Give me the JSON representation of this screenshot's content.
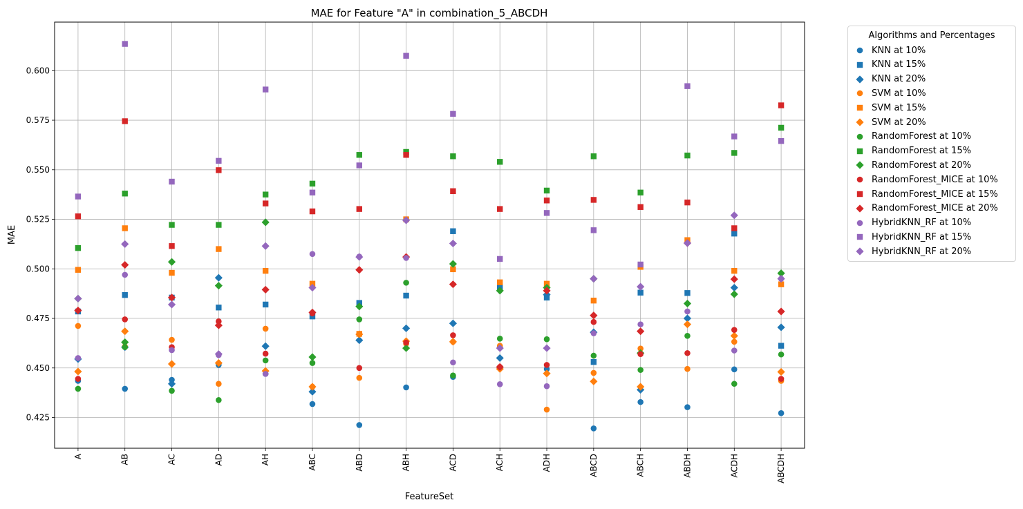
{
  "chart_data": {
    "type": "scatter",
    "title": "MAE for Feature \"A\" in combination_5_ABCDH",
    "xlabel": "FeatureSet",
    "ylabel": "MAE",
    "categories": [
      "A",
      "AB",
      "AC",
      "AD",
      "AH",
      "ABC",
      "ABD",
      "ABH",
      "ACD",
      "ACH",
      "ADH",
      "ABCD",
      "ABCH",
      "ABDH",
      "ACDH",
      "ABCDH"
    ],
    "ylim": [
      0.4095,
      0.6245
    ],
    "yticks": [
      0.425,
      0.45,
      0.475,
      0.5,
      0.525,
      0.55,
      0.575,
      0.6
    ],
    "ytick_labels": [
      "0.425",
      "0.450",
      "0.475",
      "0.500",
      "0.525",
      "0.550",
      "0.575",
      "0.600"
    ],
    "grid": true,
    "legend": {
      "title": "Algorithms and Percentages",
      "placement": "outside-top-right"
    },
    "series": [
      {
        "name": "KNN at 10%",
        "color": "#1f77b4",
        "marker": "circle",
        "values": [
          0.4435,
          0.4395,
          0.444,
          0.4515,
          0.447,
          0.4318,
          0.4212,
          0.4402,
          0.4455,
          0.4605,
          0.4495,
          0.4195,
          0.4328,
          0.4302,
          0.4493,
          0.4272
        ]
      },
      {
        "name": "KNN at 15%",
        "color": "#1f77b4",
        "marker": "square",
        "values": [
          0.4785,
          0.4868,
          0.4855,
          0.4805,
          0.482,
          0.476,
          0.4828,
          0.4865,
          0.519,
          0.491,
          0.4855,
          0.453,
          0.488,
          0.4878,
          0.5178,
          0.4612
        ]
      },
      {
        "name": "KNN at 20%",
        "color": "#1f77b4",
        "marker": "diamond",
        "values": [
          0.4545,
          0.4605,
          0.442,
          0.4955,
          0.461,
          0.438,
          0.464,
          0.47,
          0.4725,
          0.455,
          0.487,
          0.468,
          0.439,
          0.475,
          0.4905,
          0.4705
        ]
      },
      {
        "name": "SVM at 10%",
        "color": "#ff7f0e",
        "marker": "circle",
        "values": [
          0.4712,
          0.4608,
          0.4642,
          0.442,
          0.4698,
          0.4405,
          0.445,
          0.4622,
          0.4632,
          0.4612,
          0.429,
          0.4475,
          0.4598,
          0.4495,
          0.4632,
          0.4435
        ]
      },
      {
        "name": "SVM at 15%",
        "color": "#ff7f0e",
        "marker": "square",
        "values": [
          0.4995,
          0.5205,
          0.498,
          0.51,
          0.499,
          0.4925,
          0.4672,
          0.525,
          0.4998,
          0.4932,
          0.4925,
          0.484,
          0.501,
          0.5145,
          0.499,
          0.4922
        ]
      },
      {
        "name": "SVM at 20%",
        "color": "#ff7f0e",
        "marker": "diamond",
        "values": [
          0.4482,
          0.4685,
          0.452,
          0.4525,
          0.4485,
          0.4405,
          0.467,
          0.4635,
          0.4632,
          0.4495,
          0.4472,
          0.4432,
          0.4405,
          0.472,
          0.4662,
          0.448
        ]
      },
      {
        "name": "RandomForest at 10%",
        "color": "#2ca02c",
        "marker": "circle",
        "values": [
          0.4395,
          0.4605,
          0.4385,
          0.4338,
          0.4538,
          0.4525,
          0.4745,
          0.493,
          0.4462,
          0.4648,
          0.4645,
          0.4562,
          0.449,
          0.4662,
          0.442,
          0.4568
        ]
      },
      {
        "name": "RandomForest at 15%",
        "color": "#2ca02c",
        "marker": "square",
        "values": [
          0.5105,
          0.538,
          0.5222,
          0.5222,
          0.5375,
          0.543,
          0.5575,
          0.559,
          0.5568,
          0.554,
          0.5395,
          0.5568,
          0.5385,
          0.5572,
          0.5585,
          0.5712
        ]
      },
      {
        "name": "RandomForest at 20%",
        "color": "#2ca02c",
        "marker": "diamond",
        "values": [
          0.485,
          0.463,
          0.5035,
          0.4915,
          0.5235,
          0.4555,
          0.481,
          0.46,
          0.5025,
          0.489,
          0.4905,
          0.495,
          0.4575,
          0.4825,
          0.4872,
          0.4978
        ]
      },
      {
        "name": "RandomForest_MICE at 10%",
        "color": "#d62728",
        "marker": "circle",
        "values": [
          0.4445,
          0.4745,
          0.4605,
          0.4735,
          0.4572,
          0.4775,
          0.45,
          0.4628,
          0.4665,
          0.4505,
          0.4515,
          0.4732,
          0.457,
          0.4575,
          0.4692,
          0.4445
        ]
      },
      {
        "name": "RandomForest_MICE at 15%",
        "color": "#d62728",
        "marker": "square",
        "values": [
          0.5265,
          0.5745,
          0.5115,
          0.5498,
          0.533,
          0.529,
          0.5302,
          0.5575,
          0.5392,
          0.5302,
          0.5345,
          0.5348,
          0.5312,
          0.5335,
          0.5205,
          0.5825
        ]
      },
      {
        "name": "RandomForest_MICE at 20%",
        "color": "#d62728",
        "marker": "diamond",
        "values": [
          0.479,
          0.502,
          0.4855,
          0.4715,
          0.4895,
          0.478,
          0.4995,
          0.506,
          0.4922,
          0.4505,
          0.489,
          0.4765,
          0.4685,
          0.513,
          0.4948,
          0.4785
        ]
      },
      {
        "name": "HybridKNN_RF at 10%",
        "color": "#9467bd",
        "marker": "circle",
        "values": [
          0.455,
          0.497,
          0.459,
          0.4565,
          0.447,
          0.5075,
          0.5062,
          0.5055,
          0.4528,
          0.4418,
          0.4408,
          0.4675,
          0.472,
          0.4785,
          0.4588,
          0.495
        ]
      },
      {
        "name": "HybridKNN_RF at 15%",
        "color": "#9467bd",
        "marker": "square",
        "values": [
          0.5365,
          0.6135,
          0.544,
          0.5545,
          0.5905,
          0.5385,
          0.5522,
          0.6075,
          0.5782,
          0.505,
          0.5282,
          0.5195,
          0.5022,
          0.5922,
          0.5668,
          0.5645
        ]
      },
      {
        "name": "HybridKNN_RF at 20%",
        "color": "#9467bd",
        "marker": "diamond",
        "values": [
          0.485,
          0.5125,
          0.482,
          0.457,
          0.5115,
          0.4905,
          0.506,
          0.5245,
          0.5128,
          0.46,
          0.46,
          0.495,
          0.491,
          0.513,
          0.527,
          0.495
        ]
      }
    ]
  }
}
